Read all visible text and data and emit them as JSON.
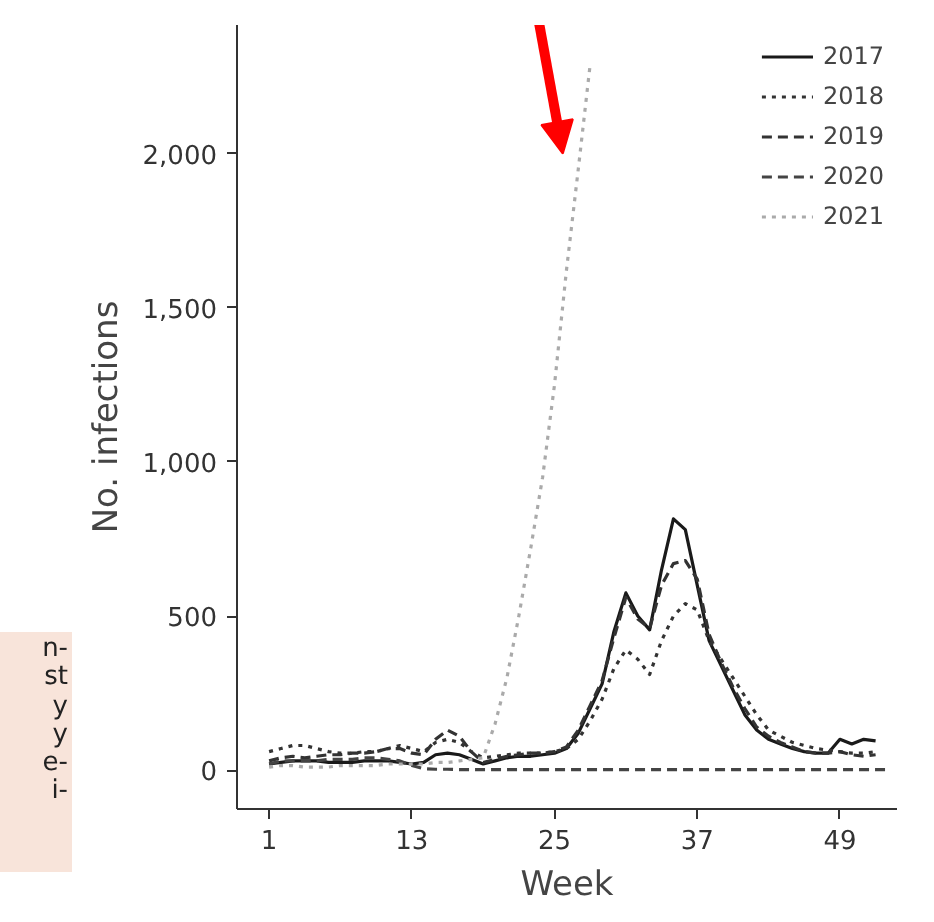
{
  "chart_data": {
    "type": "line",
    "xlabel": "Week",
    "ylabel": "No. infections",
    "x": [
      1,
      2,
      3,
      4,
      5,
      6,
      7,
      8,
      9,
      10,
      11,
      12,
      13,
      14,
      15,
      16,
      17,
      18,
      19,
      20,
      21,
      22,
      23,
      24,
      25,
      26,
      27,
      28,
      29,
      30,
      31,
      32,
      33,
      34,
      35,
      36,
      37,
      38,
      39,
      40,
      41,
      42,
      43,
      44,
      45,
      46,
      47,
      48,
      49,
      50,
      51,
      52
    ],
    "series": [
      {
        "name": "2017",
        "color": "#1a1a1a",
        "line_style": "solid",
        "values": [
          20,
          25,
          30,
          30,
          30,
          25,
          25,
          25,
          30,
          30,
          30,
          25,
          20,
          25,
          50,
          55,
          50,
          35,
          20,
          30,
          40,
          45,
          45,
          50,
          55,
          70,
          120,
          200,
          280,
          450,
          575,
          500,
          455,
          650,
          815,
          780,
          600,
          420,
          340,
          260,
          180,
          130,
          100,
          85,
          70,
          60,
          55,
          55,
          100,
          85,
          100,
          95
        ]
      },
      {
        "name": "2018",
        "color": "#333333",
        "line_style": "dotted",
        "values": [
          60,
          70,
          80,
          80,
          70,
          60,
          55,
          55,
          60,
          60,
          70,
          80,
          70,
          60,
          90,
          100,
          90,
          60,
          40,
          45,
          50,
          55,
          55,
          55,
          60,
          70,
          100,
          160,
          230,
          330,
          390,
          360,
          310,
          420,
          500,
          540,
          520,
          420,
          360,
          300,
          240,
          180,
          130,
          110,
          90,
          80,
          70,
          65,
          60,
          55,
          55,
          60
        ]
      },
      {
        "name": "2019",
        "color": "#333333",
        "line_style": "dashed",
        "values": [
          30,
          40,
          45,
          40,
          45,
          50,
          50,
          55,
          55,
          60,
          70,
          70,
          55,
          50,
          100,
          130,
          110,
          60,
          25,
          35,
          45,
          50,
          55,
          55,
          60,
          75,
          130,
          210,
          290,
          430,
          560,
          490,
          460,
          600,
          670,
          680,
          620,
          440,
          350,
          270,
          200,
          140,
          110,
          90,
          75,
          60,
          55,
          55,
          60,
          50,
          45,
          50
        ]
      },
      {
        "name": "2020",
        "color": "#444444",
        "line_style": "dashed",
        "x": [
          1,
          2,
          3,
          4,
          5,
          6,
          7,
          8,
          9,
          10,
          11,
          12,
          13,
          14,
          15,
          16,
          17,
          18,
          20,
          25,
          30,
          35,
          40,
          45,
          50,
          53
        ],
        "values": [
          20,
          30,
          30,
          30,
          30,
          35,
          35,
          35,
          40,
          40,
          35,
          30,
          15,
          5,
          3,
          3,
          2,
          2,
          2,
          2,
          2,
          2,
          2,
          2,
          2,
          2
        ]
      },
      {
        "name": "2021",
        "color": "#aaaaaa",
        "line_style": "dotted",
        "x": [
          1,
          2,
          3,
          4,
          5,
          6,
          7,
          8,
          9,
          10,
          11,
          12,
          13,
          14,
          15,
          16,
          17,
          18,
          19,
          20,
          21,
          22,
          23,
          24,
          25,
          26,
          27,
          28
        ],
        "values": [
          10,
          15,
          15,
          10,
          10,
          10,
          15,
          15,
          15,
          15,
          20,
          20,
          20,
          20,
          25,
          25,
          30,
          35,
          40,
          150,
          300,
          500,
          720,
          950,
          1250,
          1620,
          1950,
          2290
        ]
      }
    ],
    "xlim": [
      -1.7,
      53.8
    ],
    "ylim": [
      -126,
      2417
    ],
    "xticks": [
      1,
      13,
      25,
      37,
      49
    ],
    "yticks": [
      0,
      {
        "value": 500,
        "label": "500"
      },
      {
        "value": 1000,
        "label": "1,000"
      },
      {
        "value": 1500,
        "label": "1,500"
      },
      {
        "value": 2000,
        "label": "2,000"
      }
    ],
    "grid": false,
    "legend": "top right",
    "annotations": [
      "n-\nst\ny\ny\ne-\ni-"
    ]
  }
}
